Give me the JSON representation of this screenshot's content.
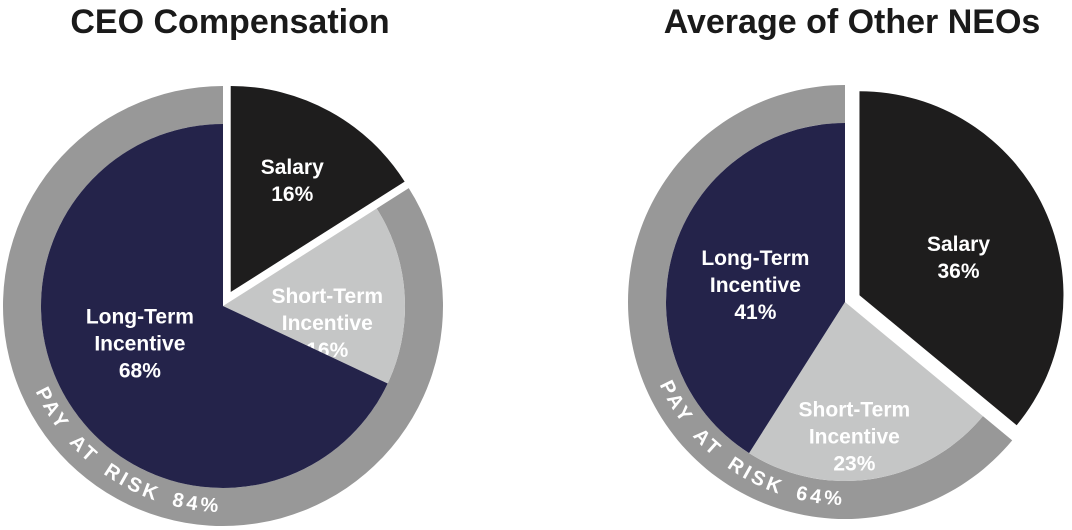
{
  "chart_data": [
    {
      "type": "pie",
      "title": "CEO Compensation",
      "units": "percent",
      "total": 100,
      "start_angle_deg": 0,
      "direction": "clockwise",
      "legend": "none",
      "slices": [
        {
          "label": "Salary",
          "value": 16,
          "display_lines": [
            "Salary",
            "16%"
          ],
          "color": "#1e1d1d",
          "text_color": "#ffffff",
          "exploded": true,
          "label_angle_deg": 28.8,
          "label_r_frac": 0.62
        },
        {
          "label": "Short-Term Incentive",
          "value": 16,
          "display_lines": [
            "Short-Term",
            "Incentive",
            "16%"
          ],
          "color": "#c5c6c6",
          "text_color": "#ffffff",
          "exploded": false,
          "label_angle_deg": 99,
          "label_r_frac": 0.58
        },
        {
          "label": "Long-Term Incentive",
          "value": 68,
          "display_lines": [
            "Long-Term",
            "Incentive",
            "68%"
          ],
          "color": "#24234a",
          "text_color": "#ffffff",
          "exploded": false,
          "label_angle_deg": 246,
          "label_r_frac": 0.5
        }
      ],
      "ring": {
        "label": "PAY AT RISK 84%",
        "value": 84,
        "color": "#989898",
        "text_color": "#ffffff"
      }
    },
    {
      "type": "pie",
      "title": "Average of Other NEOs",
      "units": "percent",
      "total": 100,
      "start_angle_deg": 0,
      "direction": "clockwise",
      "legend": "none",
      "slices": [
        {
          "label": "Salary",
          "value": 36,
          "display_lines": [
            "Salary",
            "36%"
          ],
          "color": "#1e1d1d",
          "text_color": "#ffffff",
          "exploded": true,
          "label_angle_deg": 69,
          "label_r_frac": 0.52
        },
        {
          "label": "Short-Term Incentive",
          "value": 23,
          "display_lines": [
            "Short-Term",
            "Incentive",
            "23%"
          ],
          "color": "#c5c6c6",
          "text_color": "#ffffff",
          "exploded": false,
          "label_angle_deg": 176,
          "label_r_frac": 0.75
        },
        {
          "label": "Long-Term Incentive",
          "value": 41,
          "display_lines": [
            "Long-Term",
            "Incentive",
            "41%"
          ],
          "color": "#24234a",
          "text_color": "#ffffff",
          "exploded": false,
          "label_angle_deg": 281,
          "label_r_frac": 0.51
        }
      ],
      "ring": {
        "label": "PAY AT RISK 64%",
        "value": 64,
        "color": "#989898",
        "text_color": "#ffffff"
      }
    }
  ]
}
